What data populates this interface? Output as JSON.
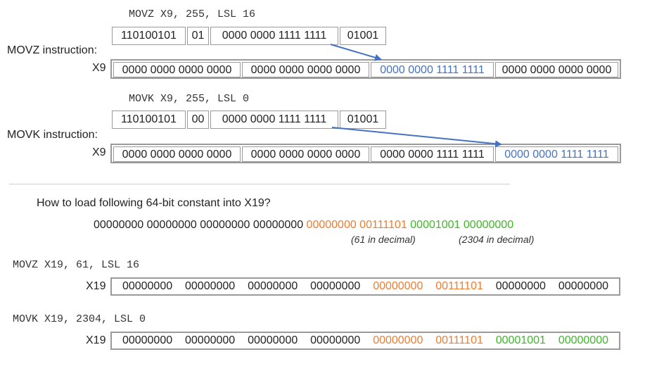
{
  "section1": {
    "code": "MOVZ X9, 255, LSL 16",
    "encoding": [
      "110100101",
      "01",
      "0000 0000 1111 1111",
      "01001"
    ],
    "title": "MOVZ instruction:",
    "reg_name": "X9",
    "reg_chunks": [
      "0000 0000 0000 0000",
      "0000 0000 0000 0000",
      "0000 0000 1111 1111",
      "0000 0000 0000 0000"
    ]
  },
  "section2": {
    "code": "MOVK X9, 255, LSL 0",
    "encoding": [
      "110100101",
      "00",
      "0000 0000 1111 1111",
      "01001"
    ],
    "title": "MOVK instruction:",
    "reg_name": "X9",
    "reg_chunks": [
      "0000 0000 0000 0000",
      "0000 0000 0000 0000",
      "0000 0000 1111 1111",
      "0000 0000 1111 1111"
    ]
  },
  "question": {
    "text": "How to load following 64-bit constant into X19?",
    "bytes_black": "00000000 00000000 00000000 00000000",
    "bytes_orange": "00000000 00111101",
    "bytes_green": "00001001 00000000",
    "note_orange": "(61 in decimal)",
    "note_green": "(2304 in decimal)"
  },
  "section3": {
    "code": "MOVZ X19, 61, LSL 16",
    "reg_name": "X19",
    "bytes": [
      "00000000",
      "00000000",
      "00000000",
      "00000000",
      "00000000",
      "00111101",
      "00000000",
      "00000000"
    ]
  },
  "section4": {
    "code": "MOVK X19, 2304, LSL 0",
    "reg_name": "X19",
    "bytes": [
      "00000000",
      "00000000",
      "00000000",
      "00000000",
      "00000000",
      "00111101",
      "00001001",
      "00000000"
    ]
  },
  "colors": {
    "blue": "#4472c4",
    "orange": "#ed7d31",
    "green": "#3cb825",
    "border": "#9a9a9a"
  }
}
